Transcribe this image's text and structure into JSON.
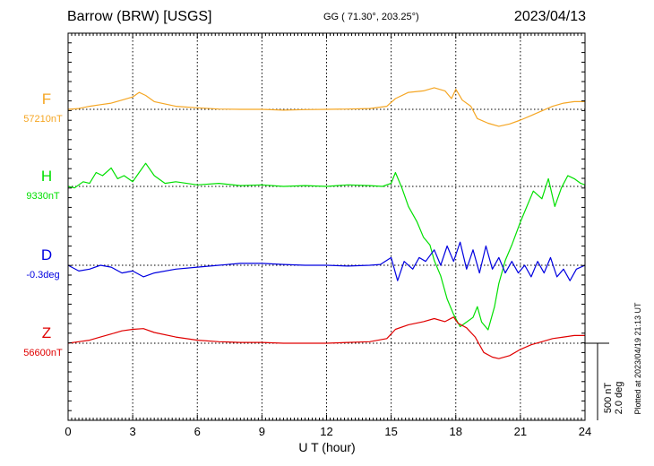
{
  "header": {
    "station": "Barrow (BRW)  [USGS]",
    "coords": "GG ( 71.30°, 203.25°)",
    "date": "2023/04/13"
  },
  "plotted_note": "Plotted at 2023/04/19 21:13 UT",
  "scale_bar": {
    "nt": "500 nT",
    "deg": "2.0 deg"
  },
  "chart_data": {
    "type": "line",
    "xlabel": "U T (hour)",
    "xlim": [
      0,
      24
    ],
    "xticks": [
      0,
      3,
      6,
      9,
      12,
      15,
      18,
      21,
      24
    ],
    "grid": true,
    "series": [
      {
        "name": "F",
        "baseline_label": "57210nT",
        "color": "#f5a623",
        "x": [
          0,
          0.5,
          1,
          1.5,
          2,
          2.5,
          3,
          3.3,
          3.6,
          4,
          5,
          6,
          7,
          8,
          9,
          10,
          11,
          12,
          13,
          14,
          14.8,
          15.2,
          15.8,
          16.5,
          17,
          17.5,
          17.8,
          18,
          18.3,
          18.7,
          19,
          19.5,
          20,
          20.5,
          21,
          21.5,
          22,
          22.5,
          23,
          23.5,
          24
        ],
        "y": [
          57210,
          57215,
          57230,
          57240,
          57250,
          57270,
          57290,
          57320,
          57300,
          57260,
          57230,
          57220,
          57212,
          57210,
          57210,
          57205,
          57208,
          57210,
          57212,
          57215,
          57230,
          57280,
          57320,
          57330,
          57350,
          57330,
          57280,
          57340,
          57270,
          57230,
          57150,
          57120,
          57100,
          57115,
          57140,
          57170,
          57200,
          57230,
          57250,
          57260,
          57260
        ]
      },
      {
        "name": "H",
        "baseline_label": "9330nT",
        "color": "#00e000",
        "x": [
          0,
          0.3,
          0.7,
          1,
          1.3,
          1.6,
          2,
          2.3,
          2.6,
          3,
          3.3,
          3.6,
          4,
          4.5,
          5,
          6,
          7,
          8,
          9,
          10,
          11,
          12,
          13,
          14,
          14.6,
          15,
          15.2,
          15.5,
          15.8,
          16.2,
          16.5,
          16.8,
          17,
          17.3,
          17.6,
          17.9,
          18.2,
          18.5,
          18.8,
          19,
          19.2,
          19.5,
          19.8,
          20,
          20.3,
          20.6,
          21,
          21.3,
          21.6,
          22,
          22.3,
          22.6,
          22.9,
          23.2,
          23.5,
          23.8,
          24
        ],
        "y": [
          9330,
          9320,
          9360,
          9350,
          9420,
          9400,
          9450,
          9380,
          9400,
          9360,
          9420,
          9480,
          9400,
          9350,
          9360,
          9340,
          9350,
          9335,
          9340,
          9330,
          9335,
          9330,
          9340,
          9335,
          9330,
          9350,
          9420,
          9320,
          9200,
          9100,
          9000,
          8950,
          8850,
          8750,
          8600,
          8500,
          8420,
          8450,
          8480,
          8550,
          8450,
          8400,
          8550,
          8700,
          8850,
          8950,
          9100,
          9200,
          9300,
          9250,
          9380,
          9200,
          9320,
          9400,
          9380,
          9350,
          9340
        ]
      },
      {
        "name": "D",
        "baseline_label": "-0.3deg",
        "color": "#0000e0",
        "x": [
          0,
          0.5,
          1,
          1.5,
          2,
          2.5,
          3,
          3.5,
          4,
          5,
          6,
          7,
          8,
          9,
          10,
          11,
          12,
          13,
          14,
          14.5,
          15,
          15.3,
          15.6,
          16,
          16.3,
          16.6,
          17,
          17.3,
          17.6,
          17.9,
          18.2,
          18.5,
          18.8,
          19.1,
          19.4,
          19.7,
          20,
          20.3,
          20.6,
          20.9,
          21.2,
          21.5,
          21.8,
          22.1,
          22.4,
          22.7,
          23,
          23.3,
          23.6,
          24
        ],
        "y": [
          -0.3,
          -0.45,
          -0.4,
          -0.3,
          -0.35,
          -0.5,
          -0.45,
          -0.6,
          -0.5,
          -0.4,
          -0.35,
          -0.3,
          -0.25,
          -0.25,
          -0.28,
          -0.3,
          -0.3,
          -0.32,
          -0.3,
          -0.28,
          -0.1,
          -0.7,
          -0.2,
          -0.4,
          -0.1,
          -0.2,
          0.1,
          -0.3,
          0.2,
          -0.2,
          0.3,
          -0.4,
          0.1,
          -0.5,
          0.2,
          -0.4,
          -0.1,
          -0.5,
          -0.2,
          -0.5,
          -0.3,
          -0.6,
          -0.2,
          -0.5,
          -0.1,
          -0.6,
          -0.4,
          -0.7,
          -0.4,
          -0.3
        ]
      },
      {
        "name": "Z",
        "baseline_label": "56600nT",
        "color": "#e00000",
        "x": [
          0,
          0.5,
          1,
          1.5,
          2,
          2.5,
          3,
          3.5,
          4,
          5,
          6,
          7,
          8,
          9,
          10,
          11,
          12,
          13,
          14,
          14.8,
          15.2,
          15.8,
          16.5,
          17,
          17.5,
          17.9,
          18.1,
          18.5,
          18.9,
          19.3,
          19.7,
          20,
          20.5,
          21,
          21.5,
          22,
          22.5,
          23,
          23.5,
          24
        ],
        "y": [
          56600,
          56610,
          56620,
          56640,
          56660,
          56680,
          56690,
          56695,
          56670,
          56640,
          56620,
          56610,
          56605,
          56605,
          56600,
          56600,
          56600,
          56605,
          56610,
          56630,
          56690,
          56720,
          56740,
          56760,
          56740,
          56770,
          56730,
          56700,
          56640,
          56540,
          56510,
          56500,
          56520,
          56560,
          56590,
          56610,
          56630,
          56640,
          56650,
          56650
        ]
      }
    ]
  }
}
